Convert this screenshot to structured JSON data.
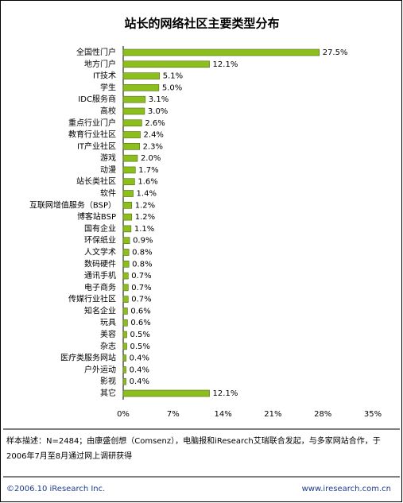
{
  "chart_data": {
    "type": "hbar",
    "title": "站长的网络社区主要类型分布",
    "categories": [
      "全国性门户",
      "地方门户",
      "IT技术",
      "学生",
      "IDC服务商",
      "高校",
      "重点行业门户",
      "教育行业社区",
      "IT产业社区",
      "游戏",
      "动漫",
      "站长类社区",
      "软件",
      "互联网增值服务（BSP）",
      "博客站BSP",
      "国有企业",
      "环保纸业",
      "人文学术",
      "数码硬件",
      "通讯手机",
      "电子商务",
      "传媒行业社区",
      "知名企业",
      "玩具",
      "美容",
      "杂志",
      "医疗类服务网站",
      "户外运动",
      "影视",
      "其它"
    ],
    "values": [
      27.5,
      12.1,
      5.1,
      5.0,
      3.1,
      3.0,
      2.6,
      2.4,
      2.3,
      2.0,
      1.7,
      1.6,
      1.4,
      1.2,
      1.2,
      1.1,
      0.9,
      0.8,
      0.8,
      0.7,
      0.7,
      0.7,
      0.6,
      0.6,
      0.5,
      0.5,
      0.4,
      0.4,
      0.4,
      12.1
    ],
    "value_labels": [
      "27.5%",
      "12.1%",
      "5.1%",
      "5.0%",
      "3.1%",
      "3.0%",
      "2.6%",
      "2.4%",
      "2.3%",
      "2.0%",
      "1.7%",
      "1.6%",
      "1.4%",
      "1.2%",
      "1.2%",
      "1.1%",
      "0.9%",
      "0.8%",
      "0.8%",
      "0.7%",
      "0.7%",
      "0.7%",
      "0.6%",
      "0.6%",
      "0.5%",
      "0.5%",
      "0.4%",
      "0.4%",
      "0.4%",
      "12.1%"
    ],
    "color": "#8cbf1e",
    "xlim": [
      0,
      35
    ],
    "xticks": [
      {
        "value": 0,
        "label": "0%"
      },
      {
        "value": 7,
        "label": "7%"
      },
      {
        "value": 14,
        "label": "14%"
      },
      {
        "value": 21,
        "label": "21%"
      },
      {
        "value": 28,
        "label": "28%"
      },
      {
        "value": 35,
        "label": "35%"
      }
    ],
    "grid": false,
    "note": "样本描述：N=2484；由康盛创想（Comsenz），电脑报和iResearch艾瑞联合发起，与多家网站合作，于2006年7月至8月通过网上调研获得"
  },
  "footer": {
    "left": "©2006.10 iResearch Inc.",
    "right": "www.iresearch.com.cn"
  }
}
